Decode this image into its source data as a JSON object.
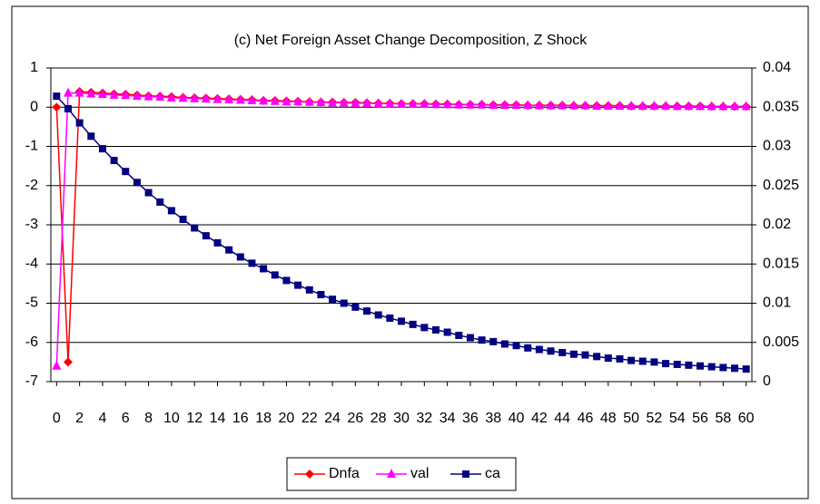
{
  "chart_data": {
    "type": "line",
    "title": "(c) Net Foreign Asset Change Decomposition, Z Shock",
    "x": [
      0,
      1,
      2,
      3,
      4,
      5,
      6,
      7,
      8,
      9,
      10,
      11,
      12,
      13,
      14,
      15,
      16,
      17,
      18,
      19,
      20,
      21,
      22,
      23,
      24,
      25,
      26,
      27,
      28,
      29,
      30,
      31,
      32,
      33,
      34,
      35,
      36,
      37,
      38,
      39,
      40,
      41,
      42,
      43,
      44,
      45,
      46,
      47,
      48,
      49,
      50,
      51,
      52,
      53,
      54,
      55,
      56,
      57,
      58,
      59,
      60
    ],
    "xlim": [
      -0.5,
      60.5
    ],
    "xticks": [
      0,
      2,
      4,
      6,
      8,
      10,
      12,
      14,
      16,
      18,
      20,
      22,
      24,
      26,
      28,
      30,
      32,
      34,
      36,
      38,
      40,
      42,
      44,
      46,
      48,
      50,
      52,
      54,
      56,
      58,
      60
    ],
    "ylim": [
      -7,
      1
    ],
    "yticks": [
      -7,
      -6,
      -5,
      -4,
      -3,
      -2,
      -1,
      0,
      1
    ],
    "y2lim": [
      0,
      0.04
    ],
    "y2ticks": [
      0,
      0.005,
      0.01,
      0.015,
      0.02,
      0.025,
      0.03,
      0.035,
      0.04
    ],
    "grid": true,
    "legend": "bottom",
    "series": [
      {
        "name": "Dnfa",
        "color": "#ff0000",
        "marker": "diamond",
        "axis": "y",
        "values": [
          0,
          -6.5,
          0.4,
          0.38,
          0.36,
          0.34,
          0.33,
          0.31,
          0.29,
          0.28,
          0.27,
          0.25,
          0.24,
          0.23,
          0.22,
          0.21,
          0.2,
          0.19,
          0.17,
          0.17,
          0.16,
          0.15,
          0.14,
          0.13,
          0.13,
          0.12,
          0.12,
          0.11,
          0.1,
          0.1,
          0.09,
          0.09,
          0.09,
          0.08,
          0.08,
          0.07,
          0.07,
          0.07,
          0.06,
          0.06,
          0.06,
          0.05,
          0.05,
          0.05,
          0.05,
          0.04,
          0.04,
          0.04,
          0.04,
          0.04,
          0.03,
          0.03,
          0.03,
          0.03,
          0.03,
          0.03,
          0.03,
          0.02,
          0.02,
          0.02,
          0.02
        ]
      },
      {
        "name": "val",
        "color": "#ff00ff",
        "marker": "triangle",
        "axis": "y",
        "values": [
          -6.6,
          0.36,
          0.36,
          0.34,
          0.33,
          0.31,
          0.3,
          0.28,
          0.27,
          0.26,
          0.24,
          0.23,
          0.22,
          0.21,
          0.2,
          0.19,
          0.18,
          0.17,
          0.16,
          0.15,
          0.14,
          0.14,
          0.13,
          0.12,
          0.11,
          0.11,
          0.1,
          0.1,
          0.09,
          0.09,
          0.08,
          0.08,
          0.08,
          0.07,
          0.07,
          0.06,
          0.06,
          0.06,
          0.05,
          0.05,
          0.05,
          0.05,
          0.04,
          0.04,
          0.04,
          0.04,
          0.04,
          0.03,
          0.03,
          0.03,
          0.03,
          0.03,
          0.03,
          0.03,
          0.02,
          0.02,
          0.02,
          0.02,
          0.02,
          0.02,
          0.02
        ]
      },
      {
        "name": "ca",
        "color": "#000080",
        "marker": "square",
        "axis": "y2",
        "values": [
          0.0364,
          0.0348,
          0.033,
          0.0313,
          0.0297,
          0.0282,
          0.0268,
          0.0254,
          0.0241,
          0.0229,
          0.0218,
          0.0207,
          0.0196,
          0.0186,
          0.0177,
          0.0168,
          0.0159,
          0.0151,
          0.0144,
          0.0136,
          0.0129,
          0.0123,
          0.0117,
          0.0111,
          0.0105,
          0.01,
          0.0095,
          0.009,
          0.0085,
          0.0081,
          0.0077,
          0.0073,
          0.0069,
          0.0066,
          0.0063,
          0.0059,
          0.0056,
          0.0053,
          0.0051,
          0.0048,
          0.0046,
          0.0043,
          0.0041,
          0.0039,
          0.0037,
          0.0035,
          0.0034,
          0.0032,
          0.003,
          0.0029,
          0.0027,
          0.0026,
          0.0025,
          0.0023,
          0.0022,
          0.0021,
          0.002,
          0.0019,
          0.0018,
          0.0017,
          0.0016
        ]
      }
    ]
  }
}
